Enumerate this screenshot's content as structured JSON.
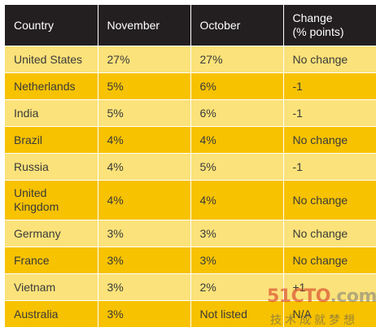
{
  "table": {
    "headers": {
      "country": "Country",
      "november": "November",
      "october": "October",
      "change_line1": "Change",
      "change_line2": "(% points)"
    },
    "rows": [
      {
        "country_line1": "United States",
        "country_line2": "",
        "november": "27%",
        "october": "27%",
        "change": "No change"
      },
      {
        "country_line1": "Netherlands",
        "country_line2": "",
        "november": "5%",
        "october": "6%",
        "change": "-1"
      },
      {
        "country_line1": "India",
        "country_line2": "",
        "november": "5%",
        "october": "6%",
        "change": "-1"
      },
      {
        "country_line1": "Brazil",
        "country_line2": "",
        "november": "4%",
        "october": "4%",
        "change": "No change"
      },
      {
        "country_line1": "Russia",
        "country_line2": "",
        "november": "4%",
        "october": "5%",
        "change": "-1"
      },
      {
        "country_line1": "United",
        "country_line2": "Kingdom",
        "november": "4%",
        "october": "4%",
        "change": "No change"
      },
      {
        "country_line1": "Germany",
        "country_line2": "",
        "november": "3%",
        "october": "3%",
        "change": "No change"
      },
      {
        "country_line1": "France",
        "country_line2": "",
        "november": "3%",
        "october": "3%",
        "change": "No change"
      },
      {
        "country_line1": "Vietnam",
        "country_line2": "",
        "november": "3%",
        "october": "2%",
        "change": "+1"
      },
      {
        "country_line1": "Australia",
        "country_line2": "",
        "november": "3%",
        "october": "Not listed",
        "change": "N/A"
      }
    ]
  },
  "colors": {
    "header_bg": "#231f20",
    "row_light": "#fbe27a",
    "row_dark": "#f7c200"
  },
  "watermark": {
    "logo_main": "51CTO",
    "logo_suffix": ".com",
    "subtitle": "技术成就梦想"
  }
}
